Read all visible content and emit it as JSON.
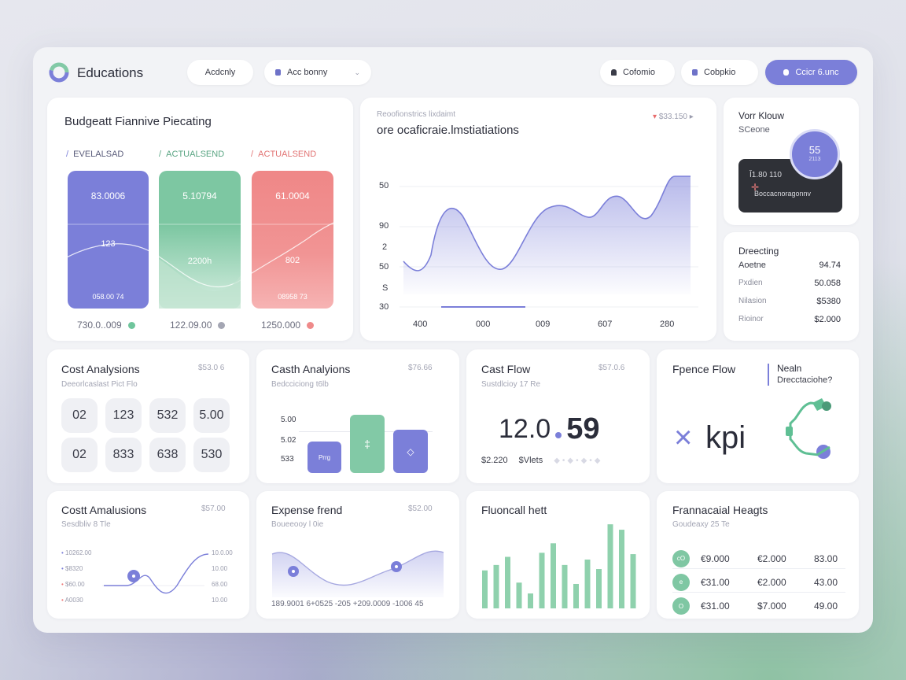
{
  "header": {
    "title": "Educations",
    "pill1": "Acdcnly",
    "pill2": "Acc bonny",
    "btn1": "Cofomio",
    "btn2": "Cobpkio",
    "btn3": "Ccicr 6.unc"
  },
  "budget": {
    "title": "Budgeatt Fiannive Piecating",
    "legend": [
      "EVELALSAD",
      "ACTUALSEND",
      "ACTUALSEND"
    ],
    "bars": [
      {
        "top": "83.0006",
        "mid": "123",
        "bottom": "058.00 74",
        "foot": "730.0..009"
      },
      {
        "top": "5.10794",
        "mid": "2200h",
        "bottom": "",
        "foot": "122.09.00"
      },
      {
        "top": "61.0004",
        "mid": "802",
        "bottom": "08958 73",
        "foot": "1250.000"
      }
    ],
    "colors": {
      "purple": "#7b7fd9",
      "green": "#82c9a6",
      "red": "#ef8a8a"
    }
  },
  "trend": {
    "subtitle": "Reoofionstrics lixdaimt",
    "title": "ore ocaficraie.lmstiatiations",
    "badge": "$33.150",
    "yticks": [
      "50",
      "90",
      "2",
      "50",
      "S",
      "30"
    ],
    "xticks": [
      "400",
      "000",
      "009",
      "607",
      "280"
    ]
  },
  "score": {
    "title": "Vorr Klouw",
    "subtitle": "SCeone",
    "ring": "55",
    "ring_sub": "2113",
    "dark_top": "Ǐ1.80 110",
    "dark_bottom": "Boccacnoragonnv"
  },
  "listcard": {
    "title": "Dreecting",
    "rows": [
      {
        "label": "Aoetne",
        "value": "94.74"
      },
      {
        "label": "Pxdien",
        "value": "50.058"
      },
      {
        "label": "Nilasion",
        "value": "$5380"
      },
      {
        "label": "Rioinor",
        "value": "$2.000"
      }
    ]
  },
  "cost1": {
    "title": "Cost Analysions",
    "val": "$53.0 6",
    "sub": "Deeorlcaslast Pict Flo",
    "cells": [
      "02",
      "123",
      "532",
      "5.00",
      "02",
      "833",
      "638",
      "530"
    ]
  },
  "cash1": {
    "title": "Casth Analyions",
    "val": "$76.66",
    "sub": "Bedcciciong t6lb",
    "labels": [
      "5.00",
      "5.02",
      "533"
    ],
    "bar_label": "Prrg"
  },
  "cashflow": {
    "title": "Cast Flow",
    "val": "$57.0.6",
    "sub": "Sustdlcioy 17 Re",
    "big_left": "12.0",
    "big_right": "59",
    "foot_left": "$2.220",
    "foot_right": "$Vlets"
  },
  "fpence": {
    "title": "Fpence Flow",
    "side1": "Nealn",
    "side2": "Drecctaciohe?",
    "kpi": "kpi"
  },
  "cost2": {
    "title": "Costt Amalusions",
    "val": "$57.00",
    "sub": "Sesdbliv 8 Tle",
    "left": [
      "10262.00",
      "$8320",
      "$60.00",
      "A0030"
    ],
    "right": [
      "10.0.00",
      "10.00",
      "68.00",
      "10.00"
    ]
  },
  "expense": {
    "title": "Expense frend",
    "val": "$52.00",
    "sub": "Boueeooy l 0ie",
    "axis": "189.9001 6+0525 -205 +209.0009 -1006 45"
  },
  "fluoncall": {
    "title": "Fluoncall hett",
    "bars": [
      0.28,
      0.32,
      0.38,
      0.19,
      0.11,
      0.41,
      0.48,
      0.32,
      0.18,
      0.36,
      0.29,
      0.62,
      0.58,
      0.4
    ]
  },
  "heights": {
    "title": "Frannacaial Heagts",
    "sub": "Goudeaxy 25 Te",
    "rows": [
      {
        "icon": "cO",
        "a": "€9.000",
        "b": "€2.000",
        "c": "83.00"
      },
      {
        "icon": "e",
        "a": "€31.00",
        "b": "€2.000",
        "c": "43.00"
      },
      {
        "icon": "O",
        "a": "€31.00",
        "b": "$7.000",
        "c": "49.00"
      }
    ]
  }
}
